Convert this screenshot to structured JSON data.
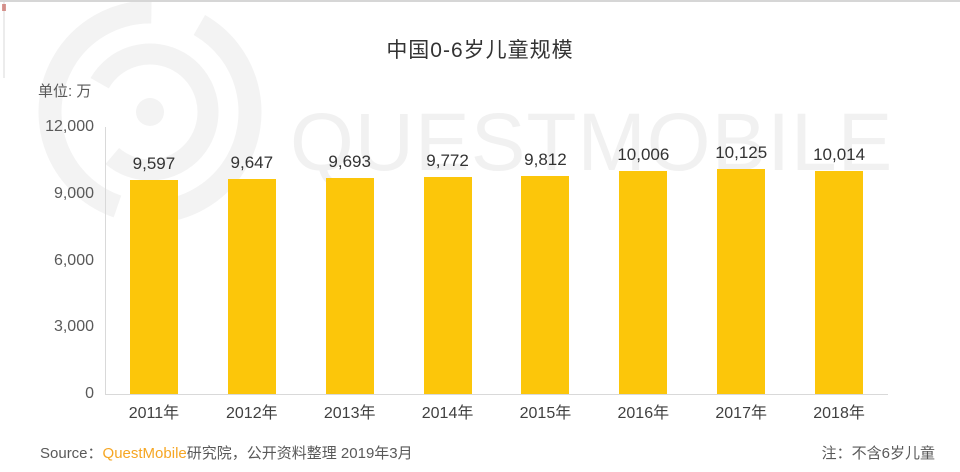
{
  "title": "中国0-6岁儿童规模",
  "unit_label": "单位: 万",
  "watermark": {
    "text": "QUESTMOBILE"
  },
  "footer": {
    "source_prefix": "Source：",
    "source_brand": "QuestMobile",
    "source_suffix": "研究院，公开资料整理 2019年3月",
    "note": "注：不含6岁儿童"
  },
  "colors": {
    "bar": "#FCC60A",
    "brand_orange": "#F6A623",
    "axis_line": "#D9D9D9",
    "title_text": "#333333",
    "tick_text": "#595959",
    "watermark": "#F1F1F1"
  },
  "chart_data": {
    "type": "bar",
    "title": "中国0-6岁儿童规模",
    "unit": "万",
    "categories": [
      "2011年",
      "2012年",
      "2013年",
      "2014年",
      "2015年",
      "2016年",
      "2017年",
      "2018年"
    ],
    "values": [
      9597,
      9647,
      9693,
      9772,
      9812,
      10006,
      10125,
      10014
    ],
    "value_labels": [
      "9,597",
      "9,647",
      "9,693",
      "9,772",
      "9,812",
      "10,006",
      "10,125",
      "10,014"
    ],
    "y_ticks": [
      "12,000",
      "9,000",
      "6,000",
      "3,000",
      "0"
    ],
    "y_tick_values": [
      12000,
      9000,
      6000,
      3000,
      0
    ],
    "ylim": [
      0,
      12000
    ],
    "xlabel": "",
    "ylabel": "单位: 万",
    "grid": false,
    "legend": false,
    "bar_color": "#FCC60A"
  }
}
